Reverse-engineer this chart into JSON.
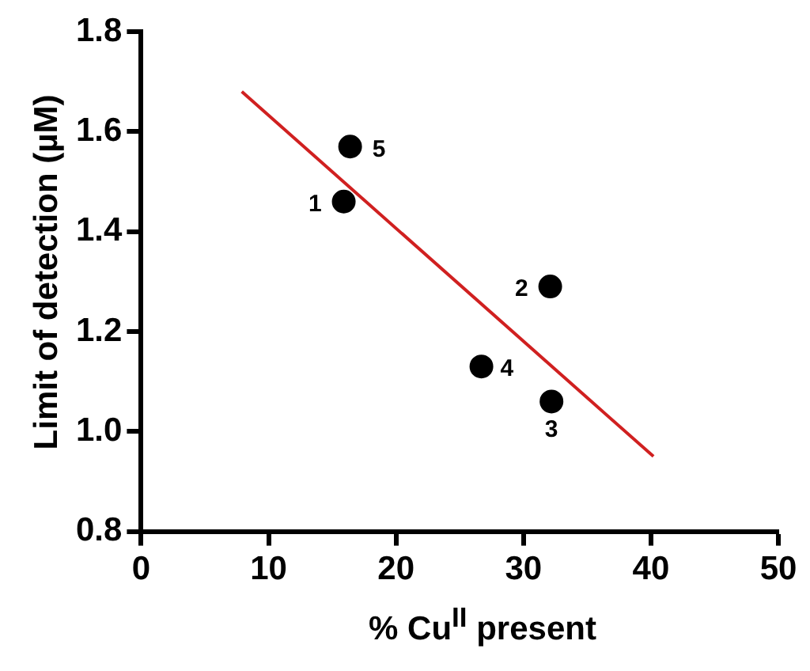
{
  "chart_data": {
    "type": "scatter",
    "xlabel": "% Cu$^{II}$ present",
    "ylabel": "Limit of detection (µM)",
    "series": [
      {
        "marker": "circle",
        "color": "#000000",
        "x": [
          15.9,
          32.1,
          32.2,
          26.7,
          16.4
        ],
        "values": [
          1.46,
          1.29,
          1.06,
          1.13,
          1.57
        ]
      },
      {
        "type": "line",
        "color": "#d02020",
        "x": [
          7.9,
          40.2
        ],
        "values": [
          1.68,
          0.95
        ]
      }
    ],
    "xlim": [
      0,
      50
    ],
    "xticks": [
      0,
      10,
      20,
      30,
      40,
      50
    ],
    "ylim": [
      0.8,
      1.8
    ],
    "yticks": [
      {
        "value": 0.8,
        "label": "0.8"
      },
      {
        "value": 1.0,
        "label": "1.0"
      },
      {
        "value": 1.2,
        "label": "1.2"
      },
      {
        "value": 1.4,
        "label": "1.4"
      },
      {
        "value": 1.6,
        "label": "1.6"
      },
      {
        "value": 1.8,
        "label": "1.8"
      }
    ],
    "grid": false,
    "legend": false,
    "annotations": [
      {
        "text": "1",
        "x": 15.9,
        "y": 1.46
      },
      {
        "text": "2",
        "x": 32.1,
        "y": 1.29
      },
      {
        "text": "3",
        "x": 32.2,
        "y": 1.06
      },
      {
        "text": "4",
        "x": 26.7,
        "y": 1.13
      },
      {
        "text": "5",
        "x": 16.4,
        "y": 1.57
      }
    ]
  }
}
